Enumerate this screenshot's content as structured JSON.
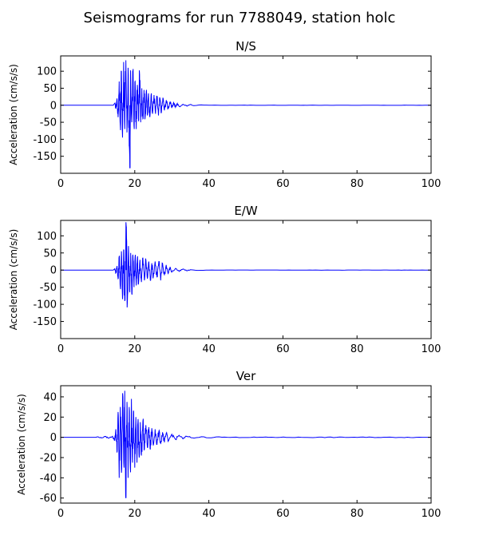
{
  "figure": {
    "title": "Seismograms for run 7788049, station holc"
  },
  "chart_data": [
    {
      "type": "line",
      "title": "N/S",
      "xlabel": "",
      "ylabel": "Acceleration (cm/s/s)",
      "xlim": [
        0,
        100
      ],
      "ylim": [
        -200,
        145
      ],
      "xticks": [
        0,
        20,
        40,
        60,
        80,
        100
      ],
      "yticks": [
        100,
        50,
        0,
        -50,
        -100,
        -150
      ],
      "grid": false,
      "color": "#0000ff",
      "onset": 14.5,
      "peak": {
        "x": 18.7,
        "y": -185
      },
      "series": [
        {
          "values": [
            [
              0,
              0
            ],
            [
              14.2,
              0
            ],
            [
              14.6,
              6
            ],
            [
              14.9,
              -10
            ],
            [
              15.2,
              20
            ],
            [
              15.5,
              -35
            ],
            [
              15.8,
              70
            ],
            [
              16.1,
              -60
            ],
            [
              16.4,
              100
            ],
            [
              16.7,
              -95
            ],
            [
              17.0,
              127
            ],
            [
              17.3,
              -70
            ],
            [
              17.6,
              132
            ],
            [
              17.9,
              -80
            ],
            [
              18.2,
              110
            ],
            [
              18.5,
              -120
            ],
            [
              18.7,
              -185
            ],
            [
              18.9,
              80
            ],
            [
              19.2,
              -50
            ],
            [
              19.5,
              95
            ],
            [
              19.8,
              -60
            ],
            [
              20.1,
              70
            ],
            [
              20.4,
              -70
            ],
            [
              20.7,
              60
            ],
            [
              21.0,
              -45
            ],
            [
              21.3,
              90
            ],
            [
              21.6,
              -50
            ],
            [
              21.9,
              50
            ],
            [
              22.2,
              -40
            ],
            [
              22.5,
              45
            ],
            [
              22.8,
              -35
            ],
            [
              23.1,
              40
            ],
            [
              23.4,
              -30
            ],
            [
              23.7,
              35
            ],
            [
              24.0,
              -30
            ],
            [
              24.4,
              30
            ],
            [
              24.8,
              -25
            ],
            [
              25.2,
              30
            ],
            [
              25.6,
              -25
            ],
            [
              26.0,
              25
            ],
            [
              26.4,
              -30
            ],
            [
              26.8,
              20
            ],
            [
              27.2,
              -20
            ],
            [
              27.6,
              22
            ],
            [
              28.0,
              -15
            ],
            [
              28.5,
              15
            ],
            [
              29.0,
              -10
            ],
            [
              29.5,
              10
            ],
            [
              30.0,
              -8
            ],
            [
              30.5,
              8
            ],
            [
              31.0,
              -6
            ],
            [
              31.5,
              5
            ],
            [
              32.0,
              -4
            ],
            [
              33.0,
              3
            ],
            [
              34.0,
              -2
            ],
            [
              35.0,
              2
            ],
            [
              36.0,
              -1
            ],
            [
              38.0,
              1
            ],
            [
              40.0,
              0
            ],
            [
              100,
              0
            ]
          ]
        }
      ]
    },
    {
      "type": "line",
      "title": "E/W",
      "xlabel": "",
      "ylabel": "Acceleration (cm/s/s)",
      "xlim": [
        0,
        100
      ],
      "ylim": [
        -200,
        145
      ],
      "xticks": [
        0,
        20,
        40,
        60,
        80,
        100
      ],
      "yticks": [
        100,
        50,
        0,
        -50,
        -100,
        -150
      ],
      "grid": false,
      "color": "#0000ff",
      "onset": 14.5,
      "peak": {
        "x": 17.7,
        "y": 127
      },
      "series": [
        {
          "values": [
            [
              0,
              0
            ],
            [
              14.2,
              0
            ],
            [
              14.6,
              4
            ],
            [
              14.9,
              -8
            ],
            [
              15.2,
              12
            ],
            [
              15.5,
              -25
            ],
            [
              15.8,
              40
            ],
            [
              16.1,
              -50
            ],
            [
              16.4,
              55
            ],
            [
              16.7,
              -85
            ],
            [
              17.0,
              60
            ],
            [
              17.3,
              -90
            ],
            [
              17.7,
              127
            ],
            [
              18.0,
              -95
            ],
            [
              18.3,
              70
            ],
            [
              18.6,
              -60
            ],
            [
              18.9,
              50
            ],
            [
              19.2,
              -70
            ],
            [
              19.5,
              45
            ],
            [
              19.8,
              -50
            ],
            [
              20.1,
              40
            ],
            [
              20.4,
              -45
            ],
            [
              20.7,
              35
            ],
            [
              21.0,
              -40
            ],
            [
              21.4,
              30
            ],
            [
              21.8,
              -35
            ],
            [
              22.2,
              35
            ],
            [
              22.6,
              -30
            ],
            [
              23.0,
              30
            ],
            [
              23.4,
              -25
            ],
            [
              23.8,
              25
            ],
            [
              24.2,
              -30
            ],
            [
              24.6,
              20
            ],
            [
              25.0,
              -20
            ],
            [
              25.5,
              25
            ],
            [
              26.0,
              -20
            ],
            [
              26.5,
              25
            ],
            [
              27.0,
              -30
            ],
            [
              27.5,
              20
            ],
            [
              28.0,
              -15
            ],
            [
              28.5,
              15
            ],
            [
              29.0,
              -10
            ],
            [
              29.5,
              8
            ],
            [
              30.0,
              -6
            ],
            [
              31.0,
              5
            ],
            [
              32.0,
              -4
            ],
            [
              33.0,
              3
            ],
            [
              34.0,
              -2
            ],
            [
              35.0,
              1
            ],
            [
              37.0,
              -1
            ],
            [
              40.0,
              0
            ],
            [
              100,
              0
            ]
          ]
        }
      ]
    },
    {
      "type": "line",
      "title": "Ver",
      "xlabel": "",
      "ylabel": "Acceleration (cm/s/s)",
      "xlim": [
        0,
        100
      ],
      "ylim": [
        -65,
        51
      ],
      "xticks": [
        0,
        20,
        40,
        60,
        80,
        100
      ],
      "yticks": [
        40,
        20,
        0,
        -20,
        -40,
        -60
      ],
      "grid": false,
      "color": "#0000ff",
      "onset": 9.5,
      "peak": {
        "x": 17.6,
        "y": -60
      },
      "series": [
        {
          "values": [
            [
              0,
              0
            ],
            [
              9.5,
              0
            ],
            [
              10,
              0.5
            ],
            [
              11,
              -0.6
            ],
            [
              12,
              0.8
            ],
            [
              13,
              -0.8
            ],
            [
              14,
              1
            ],
            [
              14.6,
              -3
            ],
            [
              14.9,
              8
            ],
            [
              15.2,
              -15
            ],
            [
              15.5,
              25
            ],
            [
              15.8,
              -40
            ],
            [
              16.1,
              30
            ],
            [
              16.4,
              -35
            ],
            [
              16.8,
              40
            ],
            [
              17.1,
              -30
            ],
            [
              17.3,
              46
            ],
            [
              17.6,
              -60
            ],
            [
              17.9,
              35
            ],
            [
              18.2,
              -40
            ],
            [
              18.5,
              30
            ],
            [
              18.8,
              -30
            ],
            [
              19.1,
              38
            ],
            [
              19.4,
              -25
            ],
            [
              19.7,
              25
            ],
            [
              20.0,
              -30
            ],
            [
              20.3,
              20
            ],
            [
              20.6,
              -25
            ],
            [
              20.9,
              18
            ],
            [
              21.2,
              -20
            ],
            [
              21.5,
              15
            ],
            [
              21.8,
              -18
            ],
            [
              22.2,
              16
            ],
            [
              22.6,
              -12
            ],
            [
              23.0,
              12
            ],
            [
              23.4,
              -10
            ],
            [
              23.8,
              10
            ],
            [
              24.2,
              -12
            ],
            [
              24.6,
              9
            ],
            [
              25.0,
              -8
            ],
            [
              25.5,
              8
            ],
            [
              26.0,
              -7
            ],
            [
              26.5,
              6
            ],
            [
              27.0,
              -6
            ],
            [
              27.5,
              5
            ],
            [
              28.0,
              -5
            ],
            [
              28.5,
              4
            ],
            [
              29.0,
              -4
            ],
            [
              30.0,
              3
            ],
            [
              31.0,
              -2
            ],
            [
              32.0,
              2
            ],
            [
              33.0,
              -1.5
            ],
            [
              34.0,
              1
            ],
            [
              36.0,
              -0.8
            ],
            [
              38.0,
              0.6
            ],
            [
              40.0,
              -0.5
            ],
            [
              42.0,
              0.4
            ],
            [
              45.0,
              0
            ],
            [
              100,
              0
            ]
          ]
        }
      ]
    }
  ]
}
